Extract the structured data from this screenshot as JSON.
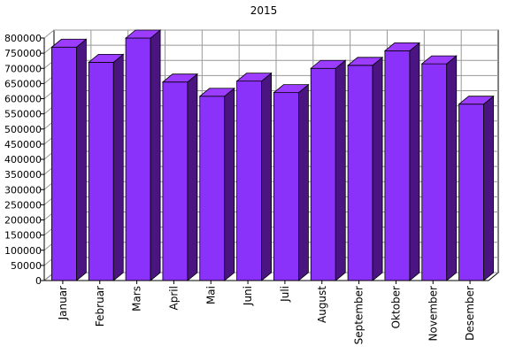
{
  "chart_data": {
    "type": "bar",
    "title": "2015",
    "xlabel": "",
    "ylabel": "",
    "categories": [
      "Januar",
      "Februar",
      "Mars",
      "April",
      "Mai",
      "Juni",
      "Juli",
      "August",
      "September",
      "Oktober",
      "November",
      "Desember"
    ],
    "values": [
      770000,
      720000,
      800000,
      655000,
      608000,
      658000,
      620000,
      700000,
      710000,
      758000,
      715000,
      582000
    ],
    "ylim": [
      0,
      800000
    ],
    "ytick_step": 50000,
    "grid": true,
    "three_d": true,
    "colors": {
      "bar_front": "#8b32fa",
      "bar_top": "#9b3cff",
      "bar_side": "#4a1580",
      "grid": "#999999",
      "axis": "#000000"
    }
  }
}
